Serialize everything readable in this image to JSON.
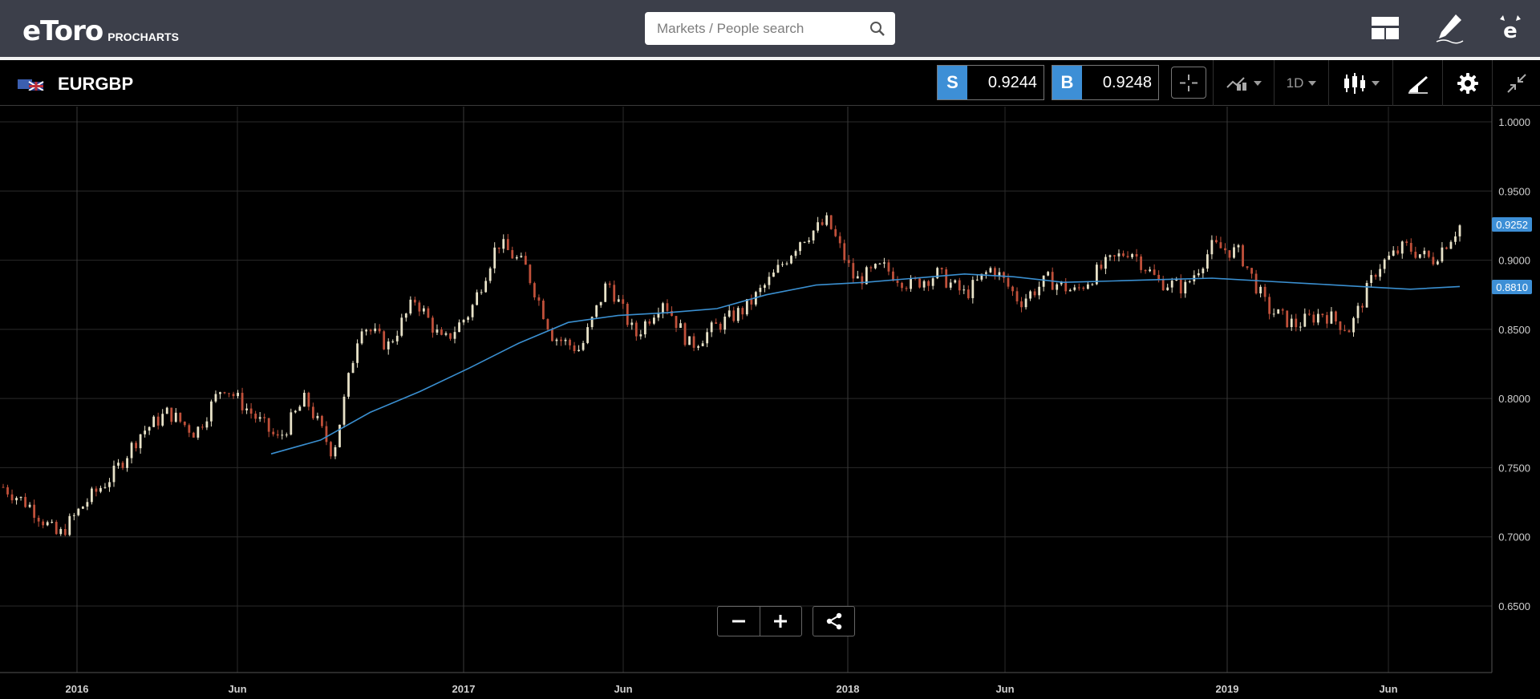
{
  "header": {
    "logo_text": "eToro",
    "logo_sub": "PROCHARTS",
    "search_placeholder": "Markets / People search",
    "icons": [
      "layout-icon",
      "pencil-icon",
      "profile-e-icon"
    ]
  },
  "toolbar": {
    "symbol": "EURGBP",
    "flag_icon": "eu-uk-flag-icon",
    "sell_label": "S",
    "sell_price": "0.9244",
    "buy_label": "B",
    "buy_price": "0.9248",
    "timeframe": "1D",
    "tools": [
      "crosshair-icon",
      "indicator-icon",
      "timeframe-dropdown",
      "candles-icon",
      "draw-icon",
      "settings-icon",
      "collapse-icon"
    ]
  },
  "chart": {
    "price_ticks": [
      "1.0000",
      "0.9500",
      "0.9000",
      "0.8500",
      "0.8000",
      "0.7500",
      "0.7000",
      "0.6500"
    ],
    "time_ticks": [
      "2016",
      "Jun",
      "2017",
      "Jun",
      "2018",
      "Jun",
      "2019",
      "Jun"
    ],
    "last_price_label": "0.9252",
    "ma_price_label": "0.8810",
    "colors": {
      "up": "#e8e2c8",
      "down": "#c0503a",
      "ma": "#3a8fd0",
      "grid": "#2a2a2a",
      "price_tag": "#3d8fd6"
    }
  },
  "chart_data": {
    "type": "line",
    "series": [
      {
        "values": [
          0.736,
          0.722,
          0.7,
          0.725,
          0.745,
          0.775,
          0.79,
          0.775,
          0.81,
          0.79,
          0.77,
          0.8,
          0.76,
          0.855,
          0.838,
          0.872,
          0.84,
          0.863,
          0.913,
          0.895,
          0.845,
          0.835,
          0.885,
          0.845,
          0.872,
          0.838,
          0.853,
          0.865,
          0.888,
          0.915,
          0.928,
          0.885,
          0.895,
          0.882,
          0.89,
          0.875,
          0.895,
          0.87,
          0.886,
          0.877,
          0.895,
          0.908,
          0.885,
          0.88,
          0.91,
          0.905,
          0.865,
          0.853,
          0.862,
          0.85,
          0.895,
          0.91,
          0.9,
          0.925
        ]
      },
      {
        "values": [
          0.76,
          0.77,
          0.79,
          0.805,
          0.822,
          0.84,
          0.855,
          0.86,
          0.862,
          0.865,
          0.875,
          0.882,
          0.884,
          0.887,
          0.89,
          0.888,
          0.884,
          0.885,
          0.886,
          0.887,
          0.885,
          0.883,
          0.881,
          0.879,
          0.881
        ]
      }
    ],
    "ylim": [
      0.6,
      1.0
    ],
    "yticks": [
      1.0,
      0.95,
      0.9,
      0.85,
      0.8,
      0.75,
      0.7,
      0.65
    ],
    "xticks": [
      "2016",
      "Jun",
      "2017",
      "Jun",
      "2018",
      "Jun",
      "2019",
      "Jun"
    ],
    "grid": true
  }
}
